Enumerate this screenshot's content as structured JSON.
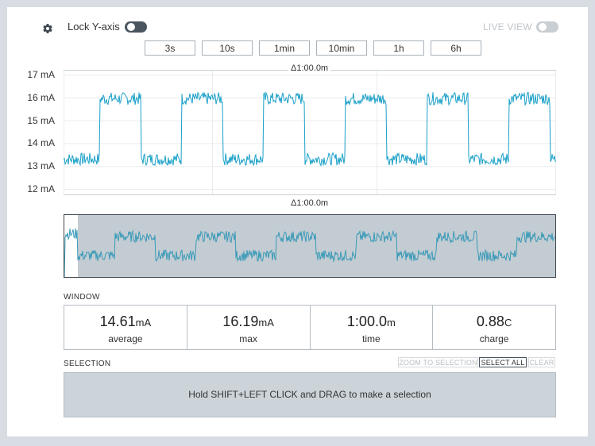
{
  "header": {
    "lock_label": "Lock Y-axis",
    "lock_on": true,
    "live_label": "LIVE VIEW",
    "live_on": false
  },
  "time_buttons": [
    "3s",
    "10s",
    "1min",
    "10min",
    "1h",
    "6h"
  ],
  "chart_data": {
    "type": "line",
    "y_ticks": [
      "17 mA",
      "16 mA",
      "15 mA",
      "14 mA",
      "13 mA",
      "12 mA"
    ],
    "ylim": [
      11.5,
      17.5
    ],
    "y_unit": "mA",
    "window_label": "Δ1:00.0m",
    "minimap_label": "Δ1:00.0m",
    "series": [
      {
        "values_pattern": "square wave",
        "low_level": 13.3,
        "high_level": 15.95,
        "periods": 6,
        "color": "#1aa0c8"
      }
    ]
  },
  "window": {
    "label": "WINDOW",
    "stats": [
      {
        "value": "14.61",
        "unit": "mA",
        "label": "average"
      },
      {
        "value": "16.19",
        "unit": "mA",
        "label": "max"
      },
      {
        "value": "1:00.0",
        "unit": "m",
        "label": "time"
      },
      {
        "value": "0.88",
        "unit": "C",
        "label": "charge"
      }
    ]
  },
  "selection": {
    "label": "SELECTION",
    "zoom_label": "ZOOM TO SELECTION",
    "select_all_label": "SELECT ALL",
    "clear_label": "CLEAR",
    "hint": "Hold SHIFT+LEFT CLICK and DRAG to make a selection"
  },
  "colors": {
    "accent": "#1aa0c8",
    "minimap_bg": "#c3ccd2",
    "minimap_line": "#3a9ab8"
  }
}
